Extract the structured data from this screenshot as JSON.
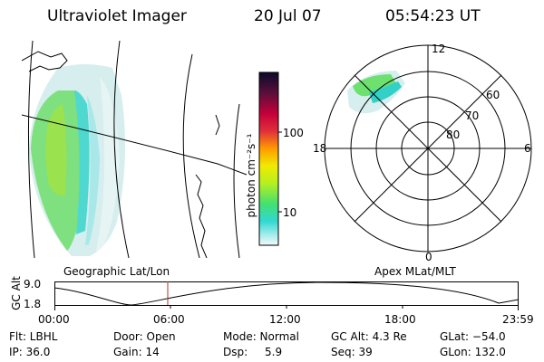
{
  "header": {
    "title": "Ultraviolet Imager",
    "date": "20 Jul 07",
    "time": "05:54:23 UT"
  },
  "colorbar": {
    "unit_label": "photon cm⁻²s⁻¹",
    "ticks": [
      "100",
      "10"
    ]
  },
  "polar_plot": {
    "mlt_labels": [
      "12",
      "18",
      "6",
      "0"
    ],
    "lat_labels": [
      "60",
      "70",
      "80"
    ]
  },
  "map_labels": {
    "left": "Geographic Lat/Lon",
    "right": "Apex MLat/MLT"
  },
  "altitude_chart": {
    "ylabel": "GC Alt",
    "ytick_top": "9.0",
    "ytick_bottom": "1.8",
    "xticks": [
      "00:00",
      "06:00",
      "12:00",
      "18:00",
      "23:59"
    ]
  },
  "status": {
    "flt": "Flt: LBHL",
    "ip": "IP: 36.0",
    "door": "Door: Open",
    "gain": "Gain: 14",
    "mode": "Mode: Normal",
    "dsp_label": "Dsp:",
    "dsp_value": "5.9",
    "gc_alt": "GC Alt: 4.3 Re",
    "seq": "Seq: 39",
    "glat": "GLat: −54.0",
    "glon": "GLon: 132.0"
  }
}
